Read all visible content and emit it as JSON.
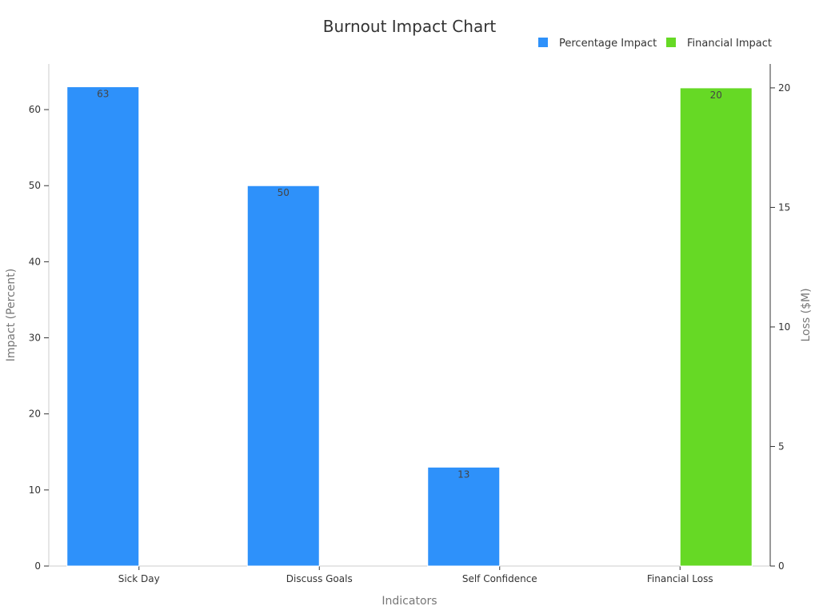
{
  "chart_data": {
    "type": "bar",
    "title": "Burnout Impact Chart",
    "xlabel": "Indicators",
    "ylabel": "Impact (Percent)",
    "y2label": "Loss ($M)",
    "categories": [
      "Sick Day",
      "Discuss Goals",
      "Self Confidence",
      "Financial Loss"
    ],
    "ylim": [
      0,
      66
    ],
    "y2lim": [
      0,
      21
    ],
    "yticks": [
      0,
      10,
      20,
      30,
      40,
      50,
      60
    ],
    "y2ticks": [
      0,
      5,
      10,
      15,
      20
    ],
    "legend_position": "top-right",
    "grid": false,
    "series": [
      {
        "name": "Percentage Impact",
        "axis": "left",
        "color": "#2e91fa",
        "values": [
          63,
          50,
          13,
          null
        ]
      },
      {
        "name": "Financial Impact",
        "axis": "right",
        "color": "#66d925",
        "values": [
          null,
          null,
          null,
          20
        ]
      }
    ]
  }
}
